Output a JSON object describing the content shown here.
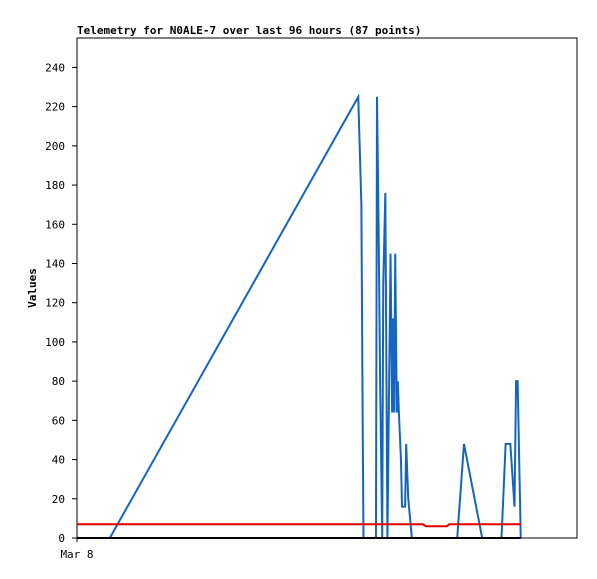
{
  "chart_data": {
    "type": "line",
    "title": "Telemetry for N0ALE-7 over last 96 hours (87 points)",
    "y_label": "Values",
    "xlim": [
      0,
      96
    ],
    "xticks": [
      {
        "value": 0,
        "label": "Mar 8"
      }
    ],
    "ylim": [
      0,
      255
    ],
    "yticks": [
      0,
      20,
      40,
      60,
      80,
      100,
      120,
      140,
      160,
      180,
      200,
      220,
      240
    ],
    "series": [
      {
        "color": "#1565c0",
        "x": [
          6.3,
          54,
          54.6,
          54.8,
          55,
          57.4,
          57.6,
          57.9,
          58.2,
          58.6,
          58.8,
          59.2,
          59.6,
          60.2,
          60.5,
          60.7,
          60.9,
          61.1,
          61.4,
          61.6,
          61.8,
          62.2,
          62.4,
          63.0,
          63.2,
          63.6,
          64.3,
          73,
          74.3,
          77.8,
          81.5,
          82.3,
          83.2,
          84.0,
          84.3,
          84.6,
          85.2
        ],
        "values": [
          0,
          225,
          170,
          80,
          0,
          0,
          225,
          160,
          80,
          0,
          130,
          176,
          0,
          145,
          64,
          112,
          64,
          145,
          64,
          80,
          64,
          40,
          16,
          16,
          48,
          20,
          0,
          0,
          48,
          0,
          0,
          48,
          48,
          16,
          80,
          80,
          0
        ]
      },
      {
        "color": "#e00000",
        "x": [
          0,
          66.4,
          67,
          71,
          71.5,
          85.2
        ],
        "values": [
          7,
          7,
          6,
          6,
          7,
          7
        ]
      },
      {
        "color": "#000000",
        "x": [
          0,
          85.2
        ],
        "values": [
          0,
          0
        ]
      }
    ]
  }
}
